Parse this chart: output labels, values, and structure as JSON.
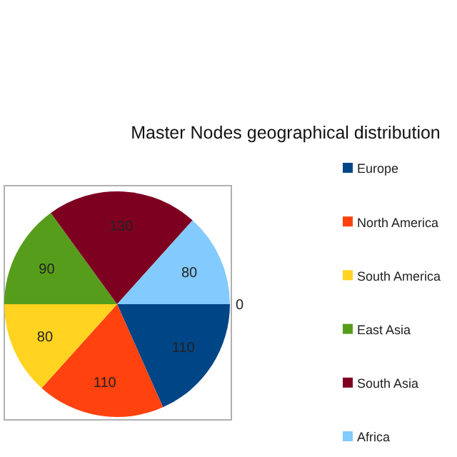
{
  "chart_data": {
    "type": "pie",
    "title": "Master Nodes geographical distribution",
    "categories": [
      "Europe",
      "North America",
      "South America",
      "East Asia",
      "South Asia",
      "Africa"
    ],
    "values": [
      110,
      110,
      80,
      90,
      130,
      80
    ],
    "colors": [
      "#004586",
      "#ff420e",
      "#ffd320",
      "#579d1c",
      "#7e0021",
      "#83caff"
    ],
    "annotations": [
      "0"
    ],
    "data_labels": true,
    "legend": "right"
  }
}
